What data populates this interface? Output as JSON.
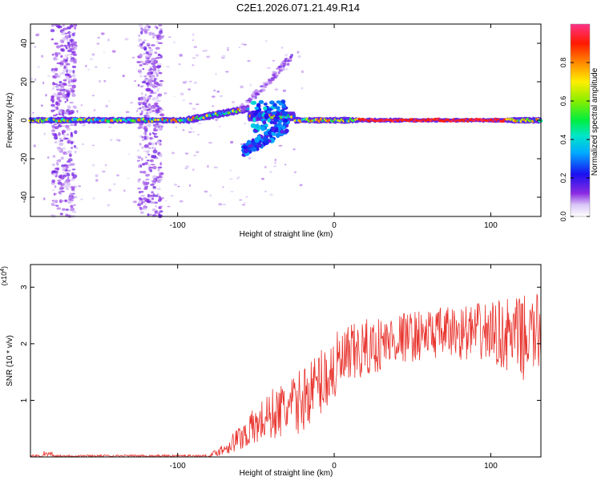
{
  "title": "C2E1.2026.071.21.49.R14",
  "chart_data": [
    {
      "type": "heatmap",
      "name": "spectrogram",
      "xlabel": "Height of straight line (km)",
      "ylabel": "Frequency (Hz)",
      "xlim": [
        -194,
        132
      ],
      "ylim": [
        -50,
        50
      ],
      "xticks": [
        -100,
        0,
        100
      ],
      "yticks": [
        -40,
        -20,
        0,
        20,
        40
      ],
      "colorbar": {
        "label": "Normalized spectral amplitude",
        "range": [
          0,
          1
        ],
        "ticks": [
          "0.0",
          "0.2",
          "0.4",
          "0.6",
          "0.8"
        ],
        "tick_values": [
          0,
          0.2,
          0.4,
          0.6,
          0.8
        ]
      },
      "features": [
        {
          "desc": "carrier band",
          "x_range": [
            -194,
            132
          ],
          "frequency": 0,
          "amplitude_range": [
            0.2,
            1.0
          ]
        },
        {
          "desc": "broadband noise columns",
          "x_ranges": [
            [
              -180,
              -165
            ],
            [
              -125,
              -110
            ]
          ],
          "frequency_range": [
            -50,
            50
          ]
        },
        {
          "desc": "upper branch",
          "x_range": [
            -60,
            -27
          ],
          "frequency_range": [
            5,
            33
          ]
        },
        {
          "desc": "lower branch",
          "x_range": [
            -58,
            -30
          ],
          "frequency_range": [
            -16,
            -3
          ]
        }
      ]
    },
    {
      "type": "line",
      "name": "snr",
      "xlabel": "Height of straight line (km)",
      "ylabel": "SNR (10 * v/v)",
      "multiplier": "(x10",
      "multiplier_exp": "4",
      "multiplier_close": ")",
      "xlim": [
        -194,
        132
      ],
      "ylim": [
        0,
        3.4
      ],
      "xticks": [
        -100,
        0,
        100
      ],
      "yticks": [
        1,
        2,
        3
      ],
      "color": "#e8332d",
      "envelope": [
        {
          "x": -194,
          "mean": 0.02,
          "spread": 0.02
        },
        {
          "x": -80,
          "mean": 0.02,
          "spread": 0.02
        },
        {
          "x": -70,
          "mean": 0.15,
          "spread": 0.12
        },
        {
          "x": -55,
          "mean": 0.45,
          "spread": 0.3
        },
        {
          "x": -40,
          "mean": 0.75,
          "spread": 0.45
        },
        {
          "x": -25,
          "mean": 0.9,
          "spread": 0.55
        },
        {
          "x": -10,
          "mean": 1.3,
          "spread": 0.6
        },
        {
          "x": 0,
          "mean": 1.55,
          "spread": 0.65
        },
        {
          "x": 15,
          "mean": 1.85,
          "spread": 0.55
        },
        {
          "x": 40,
          "mean": 2.1,
          "spread": 0.45
        },
        {
          "x": 70,
          "mean": 2.2,
          "spread": 0.45
        },
        {
          "x": 100,
          "mean": 2.2,
          "spread": 0.55
        },
        {
          "x": 120,
          "mean": 2.1,
          "spread": 0.75
        },
        {
          "x": 132,
          "mean": 2.2,
          "spread": 0.7
        }
      ]
    }
  ]
}
